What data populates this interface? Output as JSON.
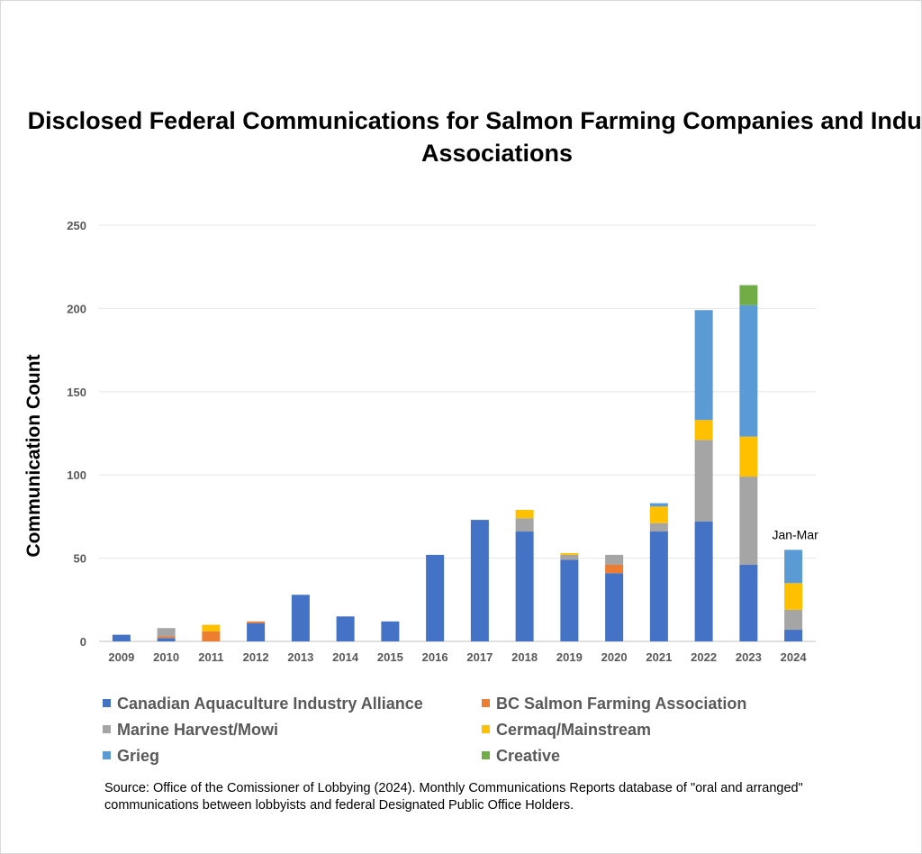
{
  "chart_data": {
    "type": "bar",
    "stacked": true,
    "title": "Disclosed Federal Communications for Salmon Farming Companies and Industry Associations",
    "xlabel": "",
    "ylabel": "Communication Count",
    "ylim": [
      0,
      250
    ],
    "yticks": [
      0,
      50,
      100,
      150,
      200,
      250
    ],
    "grid": true,
    "legend_position": "bottom",
    "categories": [
      "2009",
      "2010",
      "2011",
      "2012",
      "2013",
      "2014",
      "2015",
      "2016",
      "2017",
      "2018",
      "2019",
      "2020",
      "2021",
      "2022",
      "2023",
      "2024"
    ],
    "series": [
      {
        "name": "Canadian Aquaculture Industry Alliance",
        "color": "#4472C4",
        "values": [
          4,
          2,
          0,
          11,
          28,
          15,
          12,
          52,
          73,
          66,
          49,
          41,
          66,
          72,
          46,
          7
        ]
      },
      {
        "name": "BC Salmon Farming Association",
        "color": "#ED7D31",
        "values": [
          0,
          1,
          6,
          1,
          0,
          0,
          0,
          0,
          0,
          0,
          0,
          5,
          0,
          0,
          0,
          0
        ]
      },
      {
        "name": "Marine Harvest/Mowi",
        "color": "#A5A5A5",
        "values": [
          0,
          5,
          0,
          0,
          0,
          0,
          0,
          0,
          0,
          8,
          3,
          6,
          5,
          49,
          53,
          12
        ]
      },
      {
        "name": "Cermaq/Mainstream",
        "color": "#FFC000",
        "values": [
          0,
          0,
          4,
          0,
          0,
          0,
          0,
          0,
          0,
          5,
          1,
          0,
          10,
          12,
          24,
          16
        ]
      },
      {
        "name": "Grieg",
        "color": "#5B9BD5",
        "values": [
          0,
          0,
          0,
          0,
          0,
          0,
          0,
          0,
          0,
          0,
          0,
          0,
          2,
          66,
          79,
          20
        ]
      },
      {
        "name": "Creative",
        "color": "#70AD47",
        "values": [
          0,
          0,
          0,
          0,
          0,
          0,
          0,
          0,
          0,
          0,
          0,
          0,
          0,
          0,
          12,
          0
        ]
      }
    ],
    "annotations": [
      {
        "category": "2024",
        "text": "Jan-Mar"
      }
    ]
  },
  "source_text": "Source: Office of the Comissioner of Lobbying (2024). Monthly Communications Reports database of \"oral and arranged\" communications between lobbyists and federal Designated Public Office Holders."
}
